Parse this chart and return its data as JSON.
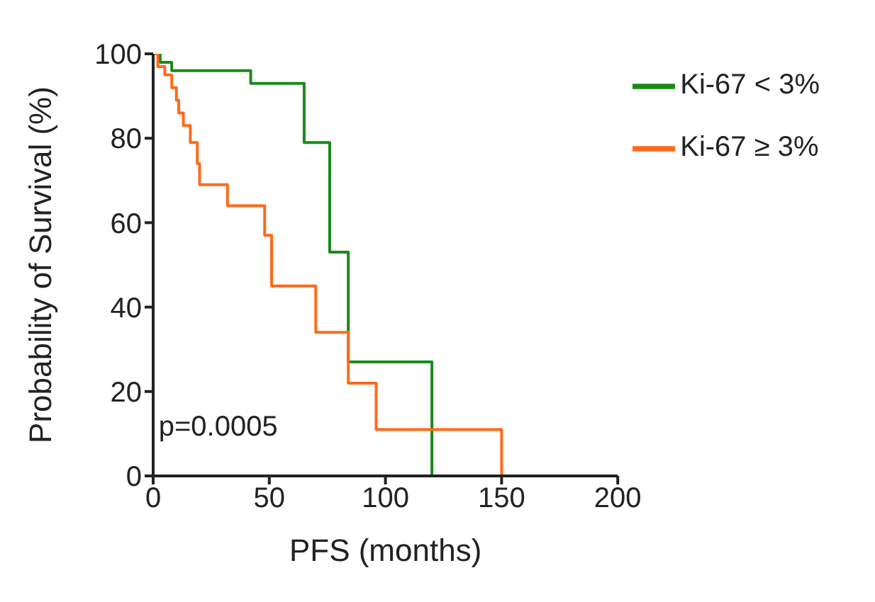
{
  "chart_data": {
    "type": "step",
    "xlabel": "PFS (months)",
    "ylabel": "Probability of Survival (%)",
    "annotations": [
      "p=0.0005"
    ],
    "xlim": [
      0,
      200
    ],
    "xticks": [
      0,
      50,
      100,
      150,
      200
    ],
    "ylim": [
      0,
      100
    ],
    "yticks": [
      0,
      20,
      40,
      60,
      80,
      100
    ],
    "grid": false,
    "legend": "top right",
    "marker": "none",
    "line_style": "solid",
    "series": [
      {
        "name": "Ki-67 < 3%",
        "color": "#1a8a1a",
        "x": [
          0,
          3,
          8,
          42,
          65,
          76,
          84,
          120
        ],
        "values": [
          100,
          98,
          96,
          93,
          79,
          53,
          27,
          0
        ]
      },
      {
        "name": "Ki-67 ≥ 3%",
        "color": "#ff6a1a",
        "x": [
          0,
          2,
          5,
          8,
          10,
          11,
          13,
          16,
          19,
          20,
          32,
          48,
          51,
          70,
          84,
          96,
          150
        ],
        "values": [
          100,
          97,
          95,
          92,
          89,
          86,
          83,
          79,
          74,
          69,
          64,
          57,
          45,
          34,
          22,
          11,
          0
        ]
      }
    ]
  }
}
